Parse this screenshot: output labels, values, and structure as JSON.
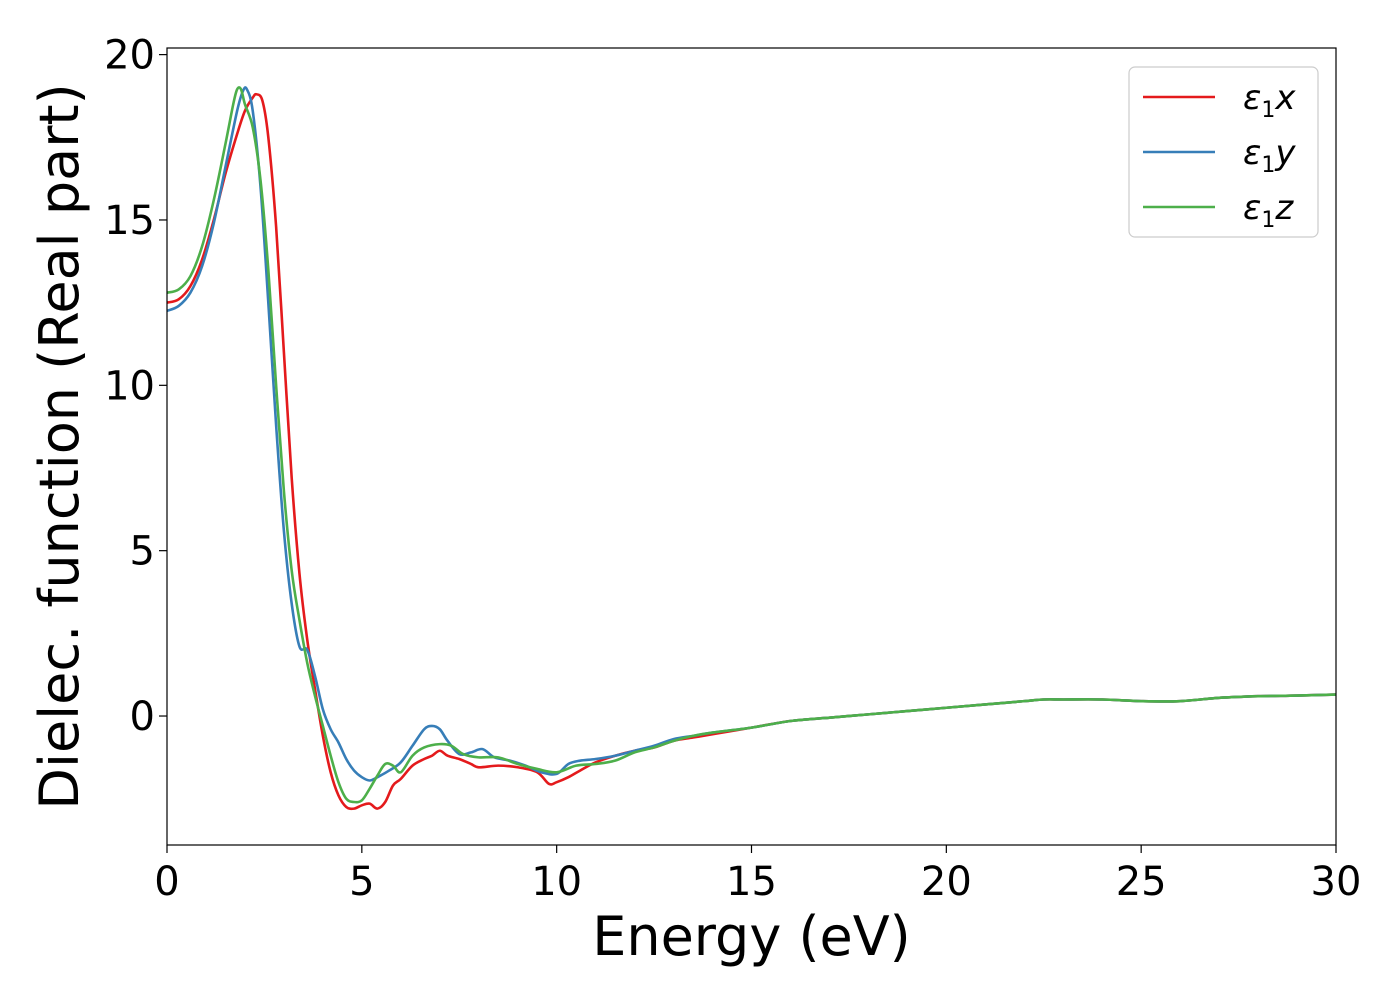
{
  "chart_data": {
    "type": "line",
    "title": "",
    "xlabel": "Energy (eV)",
    "ylabel": "Dielec. function (Real part)",
    "xlim": [
      0,
      30
    ],
    "ylim": [
      -3.9,
      20.2
    ],
    "xticks": [
      0,
      5,
      10,
      15,
      20,
      25,
      30
    ],
    "yticks": [
      0,
      5,
      10,
      15,
      20
    ],
    "grid": false,
    "legend_position": "top-right",
    "series": [
      {
        "name": "ε₁x",
        "legend": {
          "symbol": "ε",
          "sub": "1",
          "suffix": "x"
        },
        "color": "#e41a1c",
        "x": [
          0,
          0.3,
          0.6,
          0.9,
          1.2,
          1.5,
          1.8,
          2.0,
          2.2,
          2.3,
          2.45,
          2.6,
          2.8,
          3.0,
          3.2,
          3.4,
          3.6,
          3.8,
          4.0,
          4.2,
          4.4,
          4.6,
          4.8,
          5.0,
          5.2,
          5.4,
          5.6,
          5.8,
          6.0,
          6.3,
          6.6,
          6.8,
          7.0,
          7.2,
          7.5,
          7.8,
          8.0,
          8.5,
          9.0,
          9.5,
          9.8,
          10.0,
          10.3,
          10.6,
          11.0,
          11.5,
          12.0,
          12.5,
          13.0,
          13.5,
          14.0,
          15.0,
          16.0,
          17.0,
          18.0,
          19.0,
          20.0,
          21.0,
          22.0,
          22.5,
          23.0,
          24.0,
          25.0,
          26.0,
          27.0,
          28.0,
          29.0,
          30.0
        ],
        "y": [
          12.5,
          12.6,
          13.0,
          13.8,
          15.0,
          16.4,
          17.6,
          18.3,
          18.7,
          18.8,
          18.6,
          17.5,
          14.8,
          11.0,
          7.2,
          4.3,
          2.3,
          0.8,
          -0.6,
          -1.7,
          -2.4,
          -2.75,
          -2.8,
          -2.7,
          -2.65,
          -2.8,
          -2.6,
          -2.1,
          -1.9,
          -1.5,
          -1.3,
          -1.2,
          -1.05,
          -1.2,
          -1.3,
          -1.45,
          -1.55,
          -1.5,
          -1.55,
          -1.7,
          -2.05,
          -2.0,
          -1.85,
          -1.65,
          -1.4,
          -1.2,
          -1.05,
          -0.95,
          -0.75,
          -0.65,
          -0.55,
          -0.35,
          -0.15,
          -0.05,
          0.05,
          0.15,
          0.25,
          0.35,
          0.45,
          0.5,
          0.5,
          0.5,
          0.45,
          0.45,
          0.55,
          0.6,
          0.62,
          0.65
        ]
      },
      {
        "name": "ε₁y",
        "legend": {
          "symbol": "ε",
          "sub": "1",
          "suffix": "y"
        },
        "color": "#377eb8",
        "x": [
          0,
          0.3,
          0.6,
          0.9,
          1.2,
          1.5,
          1.8,
          1.95,
          2.05,
          2.2,
          2.4,
          2.6,
          2.8,
          3.0,
          3.2,
          3.4,
          3.6,
          3.8,
          4.0,
          4.2,
          4.4,
          4.6,
          4.8,
          5.0,
          5.2,
          5.4,
          5.7,
          6.0,
          6.3,
          6.6,
          6.8,
          7.0,
          7.2,
          7.5,
          7.8,
          8.1,
          8.4,
          8.8,
          9.2,
          9.6,
          10.0,
          10.3,
          10.6,
          11.0,
          11.5,
          12.0,
          12.5,
          13.0,
          13.5,
          14.0,
          15.0,
          16.0,
          17.0,
          18.0,
          19.0,
          20.0,
          21.0,
          22.0,
          22.5,
          23.0,
          24.0,
          25.0,
          26.0,
          27.0,
          28.0,
          29.0,
          30.0
        ],
        "y": [
          12.25,
          12.4,
          12.8,
          13.6,
          14.9,
          16.6,
          18.3,
          18.9,
          18.95,
          18.3,
          16.0,
          12.5,
          8.8,
          5.6,
          3.4,
          2.1,
          2.0,
          1.2,
          0.2,
          -0.4,
          -0.8,
          -1.3,
          -1.65,
          -1.85,
          -1.95,
          -1.85,
          -1.65,
          -1.4,
          -0.9,
          -0.4,
          -0.3,
          -0.4,
          -0.75,
          -1.15,
          -1.1,
          -1.0,
          -1.25,
          -1.35,
          -1.5,
          -1.7,
          -1.75,
          -1.45,
          -1.35,
          -1.3,
          -1.2,
          -1.05,
          -0.9,
          -0.7,
          -0.6,
          -0.5,
          -0.35,
          -0.15,
          -0.05,
          0.05,
          0.15,
          0.25,
          0.35,
          0.45,
          0.5,
          0.5,
          0.5,
          0.45,
          0.45,
          0.55,
          0.6,
          0.62,
          0.65
        ]
      },
      {
        "name": "ε₁z",
        "legend": {
          "symbol": "ε",
          "sub": "1",
          "suffix": "z"
        },
        "color": "#4daf4a",
        "x": [
          0,
          0.3,
          0.6,
          0.9,
          1.2,
          1.5,
          1.7,
          1.8,
          1.9,
          2.0,
          2.2,
          2.4,
          2.6,
          2.8,
          3.0,
          3.2,
          3.4,
          3.6,
          3.8,
          4.0,
          4.2,
          4.4,
          4.6,
          4.8,
          5.0,
          5.2,
          5.4,
          5.6,
          5.8,
          6.0,
          6.3,
          6.6,
          7.0,
          7.3,
          7.6,
          8.0,
          8.5,
          9.0,
          9.5,
          10.0,
          10.5,
          11.0,
          11.5,
          12.0,
          12.5,
          13.0,
          13.5,
          14.0,
          15.0,
          16.0,
          17.0,
          18.0,
          19.0,
          20.0,
          21.0,
          22.0,
          22.5,
          23.0,
          24.0,
          25.0,
          26.0,
          27.0,
          28.0,
          29.0,
          30.0
        ],
        "y": [
          12.8,
          12.9,
          13.3,
          14.2,
          15.6,
          17.3,
          18.5,
          18.95,
          18.95,
          18.5,
          17.8,
          16.2,
          13.5,
          10.0,
          6.8,
          4.4,
          2.9,
          1.6,
          0.6,
          -0.3,
          -1.2,
          -2.0,
          -2.5,
          -2.6,
          -2.55,
          -2.2,
          -1.8,
          -1.45,
          -1.5,
          -1.7,
          -1.2,
          -0.95,
          -0.85,
          -0.9,
          -1.15,
          -1.25,
          -1.25,
          -1.45,
          -1.6,
          -1.7,
          -1.5,
          -1.45,
          -1.35,
          -1.1,
          -0.95,
          -0.75,
          -0.6,
          -0.5,
          -0.35,
          -0.15,
          -0.05,
          0.05,
          0.15,
          0.25,
          0.35,
          0.45,
          0.5,
          0.5,
          0.5,
          0.45,
          0.45,
          0.55,
          0.6,
          0.62,
          0.65
        ]
      }
    ]
  }
}
